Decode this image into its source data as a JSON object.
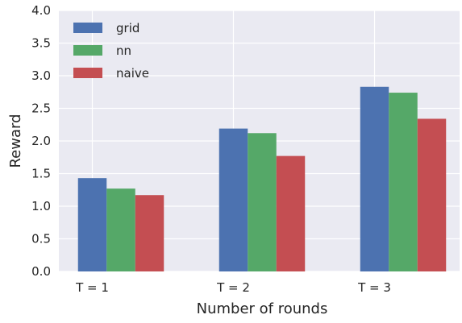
{
  "chart_data": {
    "type": "bar",
    "categories": [
      "T = 1",
      "T = 2",
      "T = 3"
    ],
    "series": [
      {
        "name": "grid",
        "values": [
          1.43,
          2.19,
          2.83
        ],
        "color": "#4c72b0"
      },
      {
        "name": "nn",
        "values": [
          1.27,
          2.12,
          2.74
        ],
        "color": "#55a868"
      },
      {
        "name": "naive",
        "values": [
          1.17,
          1.77,
          2.34
        ],
        "color": "#c44e52"
      }
    ],
    "xlabel": "Number of rounds",
    "ylabel": "Reward",
    "ylim": [
      0,
      4.0
    ],
    "yticks": [
      "0.0",
      "0.5",
      "1.0",
      "1.5",
      "2.0",
      "2.5",
      "3.0",
      "3.5",
      "4.0"
    ],
    "grid": true,
    "legend_position": "upper-left",
    "background_color": "#eaeaf2"
  }
}
